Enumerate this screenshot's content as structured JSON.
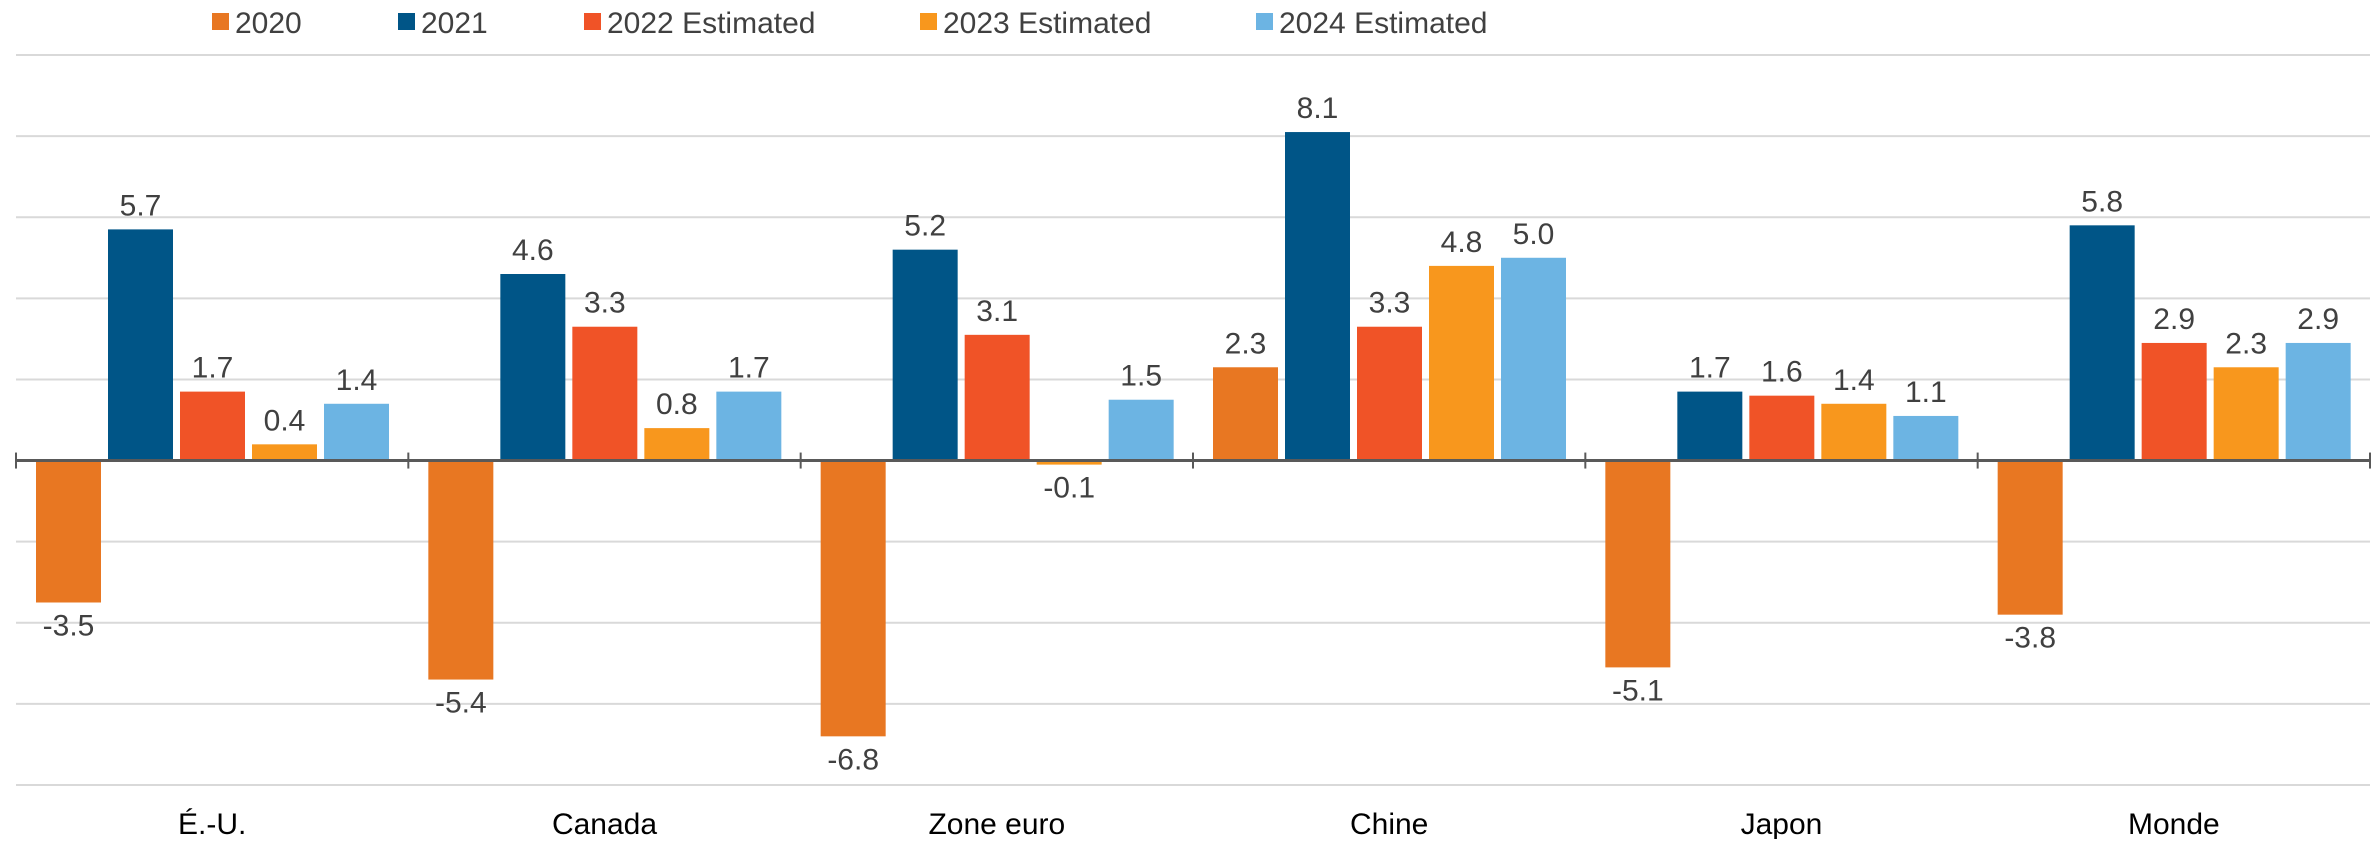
{
  "chart_data": {
    "type": "bar",
    "categories": [
      "É.-U.",
      "Canada",
      "Zone euro",
      "Chine",
      "Japon",
      "Monde"
    ],
    "series": [
      {
        "name": "2020",
        "color": "#E87722",
        "values": [
          -3.5,
          -5.4,
          -6.8,
          2.3,
          -5.1,
          -3.8
        ]
      },
      {
        "name": "2021",
        "color": "#005587",
        "values": [
          5.7,
          4.6,
          5.2,
          8.1,
          1.7,
          5.8
        ]
      },
      {
        "name": "2022 Estimated",
        "color": "#F05327",
        "values": [
          1.7,
          3.3,
          3.1,
          3.3,
          1.6,
          2.9
        ]
      },
      {
        "name": "2023 Estimated",
        "color": "#F8971D",
        "values": [
          0.4,
          0.8,
          -0.1,
          4.8,
          1.4,
          2.3
        ]
      },
      {
        "name": "2024 Estimated",
        "color": "#6CB4E3",
        "values": [
          1.4,
          1.7,
          1.5,
          5.0,
          1.1,
          2.9
        ]
      }
    ],
    "data_labels": [
      [
        "-3.5",
        "-5.4",
        "-6.8",
        "2.3",
        "-5.1",
        "-3.8"
      ],
      [
        "5.7",
        "4.6",
        "5.2",
        "8.1",
        "1.7",
        "5.8"
      ],
      [
        "1.7",
        "3.3",
        "3.1",
        "3.3",
        "1.6",
        "2.9"
      ],
      [
        "0.4",
        "0.8",
        "-0.1",
        "4.8",
        "1.4",
        "2.3"
      ],
      [
        "1.4",
        "1.7",
        "1.5",
        "5.0",
        "1.1",
        "2.9"
      ]
    ],
    "ylim": [
      -8,
      10
    ],
    "gridlines": [
      -8,
      -6,
      -4,
      -2,
      0,
      2,
      4,
      6,
      8,
      10
    ],
    "grid": true,
    "legend_position": "top"
  }
}
